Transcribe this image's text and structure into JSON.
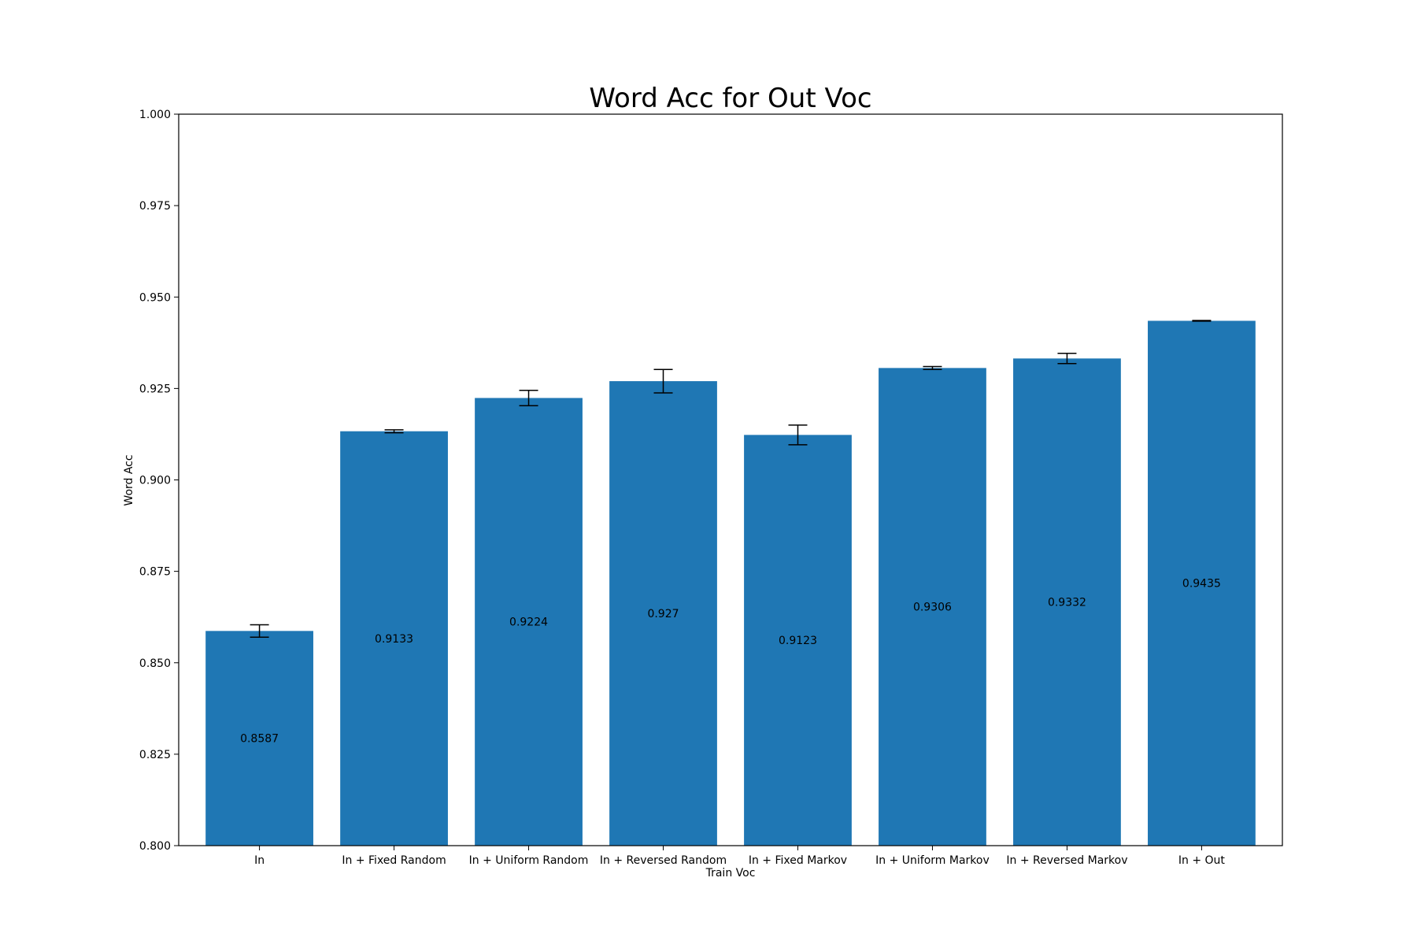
{
  "chart_data": {
    "type": "bar",
    "title": "Word Acc for Out Voc",
    "xlabel": "Train Voc",
    "ylabel": "Word Acc",
    "ylim": [
      0.8,
      1.0
    ],
    "yticks": [
      "0.800",
      "0.825",
      "0.850",
      "0.875",
      "0.900",
      "0.925",
      "0.950",
      "0.975",
      "1.000"
    ],
    "categories": [
      "In",
      "In + Fixed Random",
      "In + Uniform Random",
      "In + Reversed Random",
      "In + Fixed Markov",
      "In + Uniform Markov",
      "In + Reversed Markov",
      "In + Out"
    ],
    "values": [
      0.8587,
      0.9133,
      0.9224,
      0.927,
      0.9123,
      0.9306,
      0.9332,
      0.9435
    ],
    "value_labels": [
      "0.8587",
      "0.9133",
      "0.9224",
      "0.927",
      "0.9123",
      "0.9306",
      "0.9332",
      "0.9435"
    ],
    "errors": [
      0.0017,
      0.0004,
      0.0021,
      0.0032,
      0.0027,
      0.0004,
      0.0014,
      0.0001
    ],
    "bar_color": "#1f77b4",
    "error_color": "#000000",
    "grid": false,
    "legend": "none"
  }
}
